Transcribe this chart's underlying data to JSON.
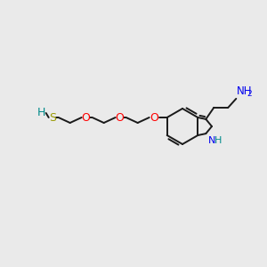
{
  "bg_color": "#eaeaea",
  "bond_color": "#1a1a1a",
  "bond_lw": 1.4,
  "S_color": "#999900",
  "O_color": "#ff0000",
  "N_color": "#0000ee",
  "teal_color": "#008b8b",
  "figsize": [
    3.0,
    3.0
  ],
  "dpi": 100,
  "xlim": [
    0,
    300
  ],
  "ylim": [
    0,
    300
  ]
}
